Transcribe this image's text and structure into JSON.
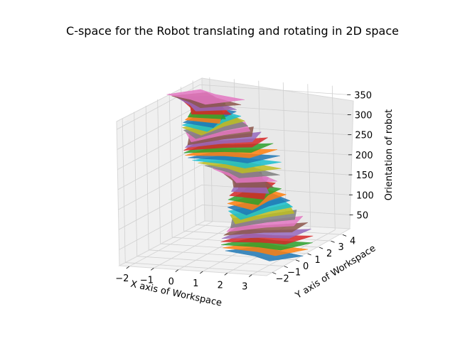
{
  "chart_data": {
    "type": "surface3d",
    "title": "C-space for the Robot translating and rotating in 2D space",
    "xlabel": "X axis of Workspace",
    "ylabel": "Y axis of Workspace",
    "zlabel": "Orientation of robot",
    "x_ticks": [
      "−2",
      "−1",
      "0",
      "1",
      "2",
      "3"
    ],
    "y_ticks": [
      "−2",
      "−1",
      "0",
      "1",
      "2",
      "3",
      "4"
    ],
    "z_ticks": [
      "50",
      "100",
      "150",
      "200",
      "250",
      "300",
      "350"
    ],
    "xlim": [
      -2.4,
      3.6
    ],
    "ylim": [
      -2.5,
      4.6
    ],
    "zlim": [
      10,
      370
    ],
    "grid": true,
    "colors": [
      "#1f77b4",
      "#ff7f0e",
      "#2ca02c",
      "#d62728",
      "#9467bd",
      "#8c564b",
      "#e377c2",
      "#7f7f7f",
      "#bcbd22",
      "#17becf"
    ],
    "layers": {
      "orientation_start": 0,
      "orientation_end": 360,
      "orientation_step": 10,
      "slice_polygon_note": "Minkowski-sum style obstacle slice rotating with orientation"
    }
  }
}
